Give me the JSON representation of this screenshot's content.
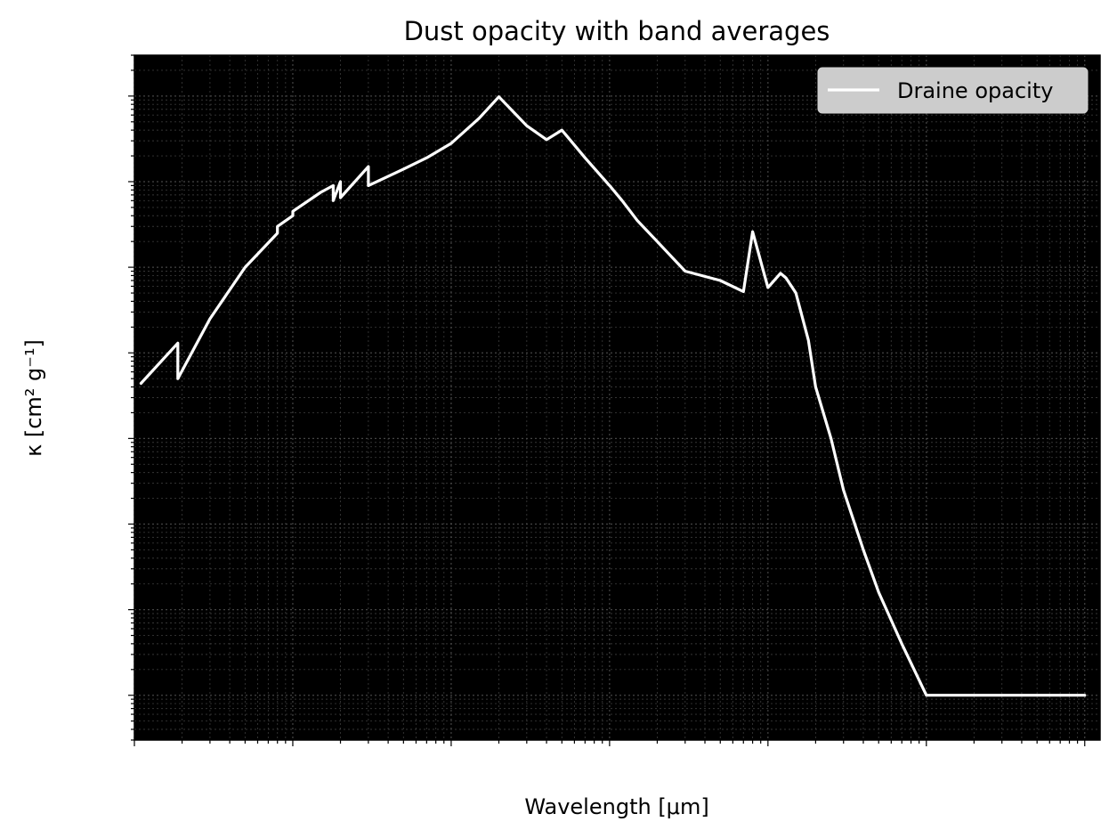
{
  "chart_data": {
    "type": "line",
    "title": "Dust opacity with band averages",
    "xlabel": "Wavelength [μm]",
    "ylabel": "κ [cm² g⁻¹]",
    "xscale": "log",
    "yscale": "log",
    "xlim": [
      0.01,
      12500
    ],
    "ylim": [
      0.03,
      3000000
    ],
    "grid": true,
    "legend_position": "top-right",
    "colors": {
      "plot_background": "#000000",
      "line": "#ffffff",
      "grid": "#4d4d4d",
      "legend_face": "#cccccc"
    },
    "series": [
      {
        "name": "Draine opacity",
        "x": [
          0.011,
          0.0188,
          0.0188,
          0.03,
          0.05,
          0.08,
          0.08,
          0.1,
          0.1,
          0.15,
          0.18,
          0.18,
          0.2,
          0.2,
          0.3,
          0.3,
          0.5,
          0.7,
          1.0,
          1.5,
          2.0,
          3.0,
          4.0,
          5.0,
          7.0,
          10.0,
          12.0,
          15.0,
          20.0,
          30.0,
          50.0,
          70.0,
          80.0,
          100.0,
          120.0,
          130.0,
          150.0,
          180.0,
          200.0,
          250.0,
          300.0,
          400.0,
          500.0,
          700.0,
          1000.0,
          1500.0,
          2000.0,
          3000.0,
          5000.0,
          7000.0,
          10000.0
        ],
        "y": [
          440,
          1300,
          500,
          2500,
          10000,
          25000,
          30000,
          40000,
          45000,
          75000,
          90000,
          60000,
          100000,
          65000,
          150000,
          90000,
          140000,
          190000,
          280000,
          550000,
          980000,
          450000,
          310000,
          400000,
          190000,
          90000,
          60000,
          35000,
          20000,
          9000,
          7000,
          5200,
          26000,
          5800,
          8500,
          7500,
          5000,
          1400,
          400,
          100,
          25,
          5,
          1.6,
          0.4,
          0.1,
          0.1,
          0.1,
          0.1,
          0.1,
          0.1,
          0.1
        ]
      }
    ]
  }
}
